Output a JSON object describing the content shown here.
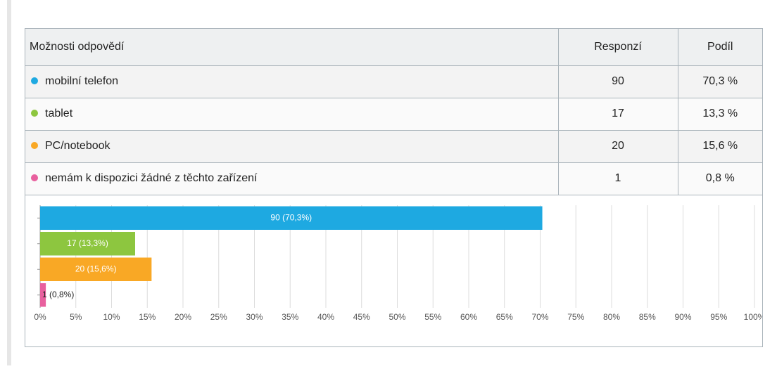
{
  "table": {
    "header": [
      "Možnosti odpovědí",
      "Responzí",
      "Podíl"
    ],
    "rows": [
      {
        "label": "mobilní telefon",
        "color": "#1ea9e1",
        "responses": 90,
        "share": "70,3 %"
      },
      {
        "label": "tablet",
        "color": "#8dc63f",
        "responses": 17,
        "share": "13,3 %"
      },
      {
        "label": "PC/notebook",
        "color": "#f9a825",
        "responses": 20,
        "share": "15,6 %"
      },
      {
        "label": "nemám k dispozici žádné z těchto zařízení",
        "color": "#e8609e",
        "responses": 1,
        "share": "0,8 %"
      }
    ]
  },
  "chart_data": {
    "type": "bar",
    "orientation": "horizontal",
    "values": [
      70.3,
      13.3,
      15.6,
      0.8
    ],
    "value_labels": [
      "90 (70,3%)",
      "17 (13,3%)",
      "20 (15,6%)",
      "1 (0,8%)"
    ],
    "colors": [
      "#1ea9e1",
      "#8dc63f",
      "#f9a825",
      "#e8609e"
    ],
    "xlim": [
      0,
      100
    ],
    "xticks": [
      {
        "value": 0,
        "label": "0%"
      },
      {
        "value": 5,
        "label": "5%"
      },
      {
        "value": 10,
        "label": "10%"
      },
      {
        "value": 15,
        "label": "15%"
      },
      {
        "value": 20,
        "label": "20%"
      },
      {
        "value": 25,
        "label": "25%"
      },
      {
        "value": 30,
        "label": "30%"
      },
      {
        "value": 35,
        "label": "35%"
      },
      {
        "value": 40,
        "label": "40%"
      },
      {
        "value": 45,
        "label": "45%"
      },
      {
        "value": 50,
        "label": "50%"
      },
      {
        "value": 55,
        "label": "55%"
      },
      {
        "value": 60,
        "label": "60%"
      },
      {
        "value": 65,
        "label": "65%"
      },
      {
        "value": 70,
        "label": "70%"
      },
      {
        "value": 75,
        "label": "75%"
      },
      {
        "value": 80,
        "label": "80%"
      },
      {
        "value": 85,
        "label": "85%"
      },
      {
        "value": 90,
        "label": "90%"
      },
      {
        "value": 95,
        "label": "95%"
      },
      {
        "value": 100,
        "label": "100%"
      }
    ],
    "grid": true
  }
}
